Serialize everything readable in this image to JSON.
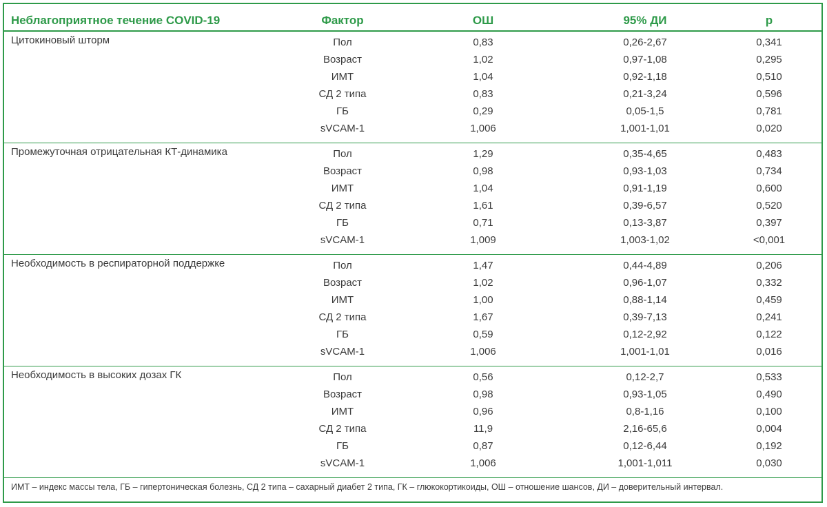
{
  "header": {
    "col_outcome": "Неблагоприятное течение COVID-19",
    "col_factor": "Фактор",
    "col_or": "ОШ",
    "col_ci": "95% ДИ",
    "col_p": "р"
  },
  "groups": [
    {
      "name": "Цитокиновый шторм",
      "rows": [
        {
          "factor": "Пол",
          "or": "0,83",
          "ci": "0,26-2,67",
          "p": "0,341"
        },
        {
          "factor": "Возраст",
          "or": "1,02",
          "ci": "0,97-1,08",
          "p": "0,295"
        },
        {
          "factor": "ИМТ",
          "or": "1,04",
          "ci": "0,92-1,18",
          "p": "0,510"
        },
        {
          "factor": "СД 2 типа",
          "or": "0,83",
          "ci": "0,21-3,24",
          "p": "0,596"
        },
        {
          "factor": "ГБ",
          "or": "0,29",
          "ci": "0,05-1,5",
          "p": "0,781"
        },
        {
          "factor": "sVCAM-1",
          "or": "1,006",
          "ci": "1,001-1,01",
          "p": "0,020"
        }
      ]
    },
    {
      "name": "Промежуточная отрицательная КТ-динамика",
      "rows": [
        {
          "factor": "Пол",
          "or": "1,29",
          "ci": "0,35-4,65",
          "p": "0,483"
        },
        {
          "factor": "Возраст",
          "or": "0,98",
          "ci": "0,93-1,03",
          "p": "0,734"
        },
        {
          "factor": "ИМТ",
          "or": "1,04",
          "ci": "0,91-1,19",
          "p": "0,600"
        },
        {
          "factor": "СД 2 типа",
          "or": "1,61",
          "ci": "0,39-6,57",
          "p": "0,520"
        },
        {
          "factor": "ГБ",
          "or": "0,71",
          "ci": "0,13-3,87",
          "p": "0,397"
        },
        {
          "factor": "sVCAM-1",
          "or": "1,009",
          "ci": "1,003-1,02",
          "p": "<0,001"
        }
      ]
    },
    {
      "name": "Необходимость в респираторной поддержке",
      "rows": [
        {
          "factor": "Пол",
          "or": "1,47",
          "ci": "0,44-4,89",
          "p": "0,206"
        },
        {
          "factor": "Возраст",
          "or": "1,02",
          "ci": "0,96-1,07",
          "p": "0,332"
        },
        {
          "factor": "ИМТ",
          "or": "1,00",
          "ci": "0,88-1,14",
          "p": "0,459"
        },
        {
          "factor": "СД 2 типа",
          "or": "1,67",
          "ci": "0,39-7,13",
          "p": "0,241"
        },
        {
          "factor": "ГБ",
          "or": "0,59",
          "ci": "0,12-2,92",
          "p": "0,122"
        },
        {
          "factor": "sVCAM-1",
          "or": "1,006",
          "ci": "1,001-1,01",
          "p": "0,016"
        }
      ]
    },
    {
      "name": "Необходимость в высоких дозах ГК",
      "rows": [
        {
          "factor": "Пол",
          "or": "0,56",
          "ci": "0,12-2,7",
          "p": "0,533"
        },
        {
          "factor": "Возраст",
          "or": "0,98",
          "ci": "0,93-1,05",
          "p": "0,490"
        },
        {
          "factor": "ИМТ",
          "or": "0,96",
          "ci": "0,8-1,16",
          "p": "0,100"
        },
        {
          "factor": "СД 2 типа",
          "or": "11,9",
          "ci": "2,16-65,6",
          "p": "0,004"
        },
        {
          "factor": "ГБ",
          "or": "0,87",
          "ci": "0,12-6,44",
          "p": "0,192"
        },
        {
          "factor": "sVCAM-1",
          "or": "1,006",
          "ci": "1,001-1,011",
          "p": "0,030"
        }
      ]
    }
  ],
  "footnote": "ИМТ – индекс массы тела, ГБ – гипертоническая болезнь, СД 2 типа – сахарный диабет 2 типа, ГК – глюкокортикоиды, ОШ – отношение шансов, ДИ – доверительный интервал.",
  "colors": {
    "accent": "#2e9a49",
    "text": "#3b3b3b"
  }
}
